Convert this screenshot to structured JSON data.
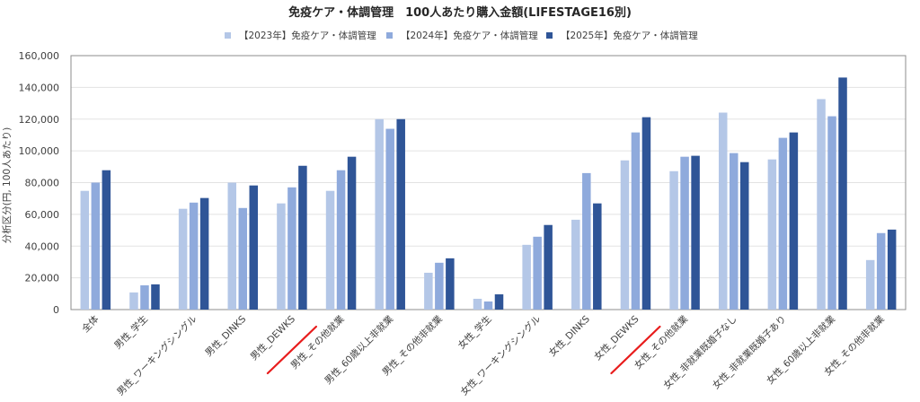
{
  "chart_data": {
    "type": "bar",
    "title": "免疫ケア・体調管理　100人あたり購入金額(LIFESTAGE16別)",
    "xlabel": "",
    "ylabel": "分析区分(円, 100人あたり)",
    "ylim": [
      0,
      160000
    ],
    "yticks": [
      0,
      20000,
      40000,
      60000,
      80000,
      100000,
      120000,
      140000,
      160000
    ],
    "ytick_labels": [
      "0",
      "20,000",
      "40,000",
      "60,000",
      "80,000",
      "100,000",
      "120,000",
      "140,000",
      "160,000"
    ],
    "grid": true,
    "legend_position": "top",
    "categories": [
      "全体",
      "男性_学生",
      "男性_ワーキングシングル",
      "男性_DINKS",
      "男性_DEWKS",
      "男性_その他就業",
      "男性_60歳以上非就業",
      "男性_その他非就業",
      "女性_学生",
      "女性_ワーキングシングル",
      "女性_DINKS",
      "女性_DEWKS",
      "女性_その他就業",
      "女性_非就業既婚子なし",
      "女性_非就業既婚子あり",
      "女性_60歳以上非就業",
      "女性_その他非就業"
    ],
    "series": [
      {
        "name": "【2023年】免疫ケア・体調管理",
        "color": "#b4c7e7",
        "values": [
          74800,
          10800,
          63500,
          80000,
          66900,
          74800,
          120000,
          23200,
          6800,
          40800,
          56600,
          94000,
          87200,
          124100,
          94600,
          132600,
          31200
        ]
      },
      {
        "name": "【2024年】免疫ケア・体調管理",
        "color": "#8faadc",
        "values": [
          80000,
          15300,
          67400,
          64000,
          77000,
          87800,
          113900,
          29500,
          5100,
          45900,
          86000,
          111600,
          96300,
          98600,
          108200,
          121800,
          48200
        ]
      },
      {
        "name": "【2025年】免疫ケア・体調管理",
        "color": "#2f5597",
        "values": [
          87800,
          15900,
          70300,
          78200,
          90600,
          96300,
          120000,
          32300,
          9600,
          53300,
          66900,
          121200,
          96900,
          92900,
          111600,
          146200,
          50400
        ]
      }
    ],
    "annotations": [
      {
        "type": "red-underline",
        "category": "男性_DEWKS",
        "color": "#e81c1c"
      },
      {
        "type": "red-underline",
        "category": "女性_DEWKS",
        "color": "#e81c1c"
      }
    ]
  }
}
